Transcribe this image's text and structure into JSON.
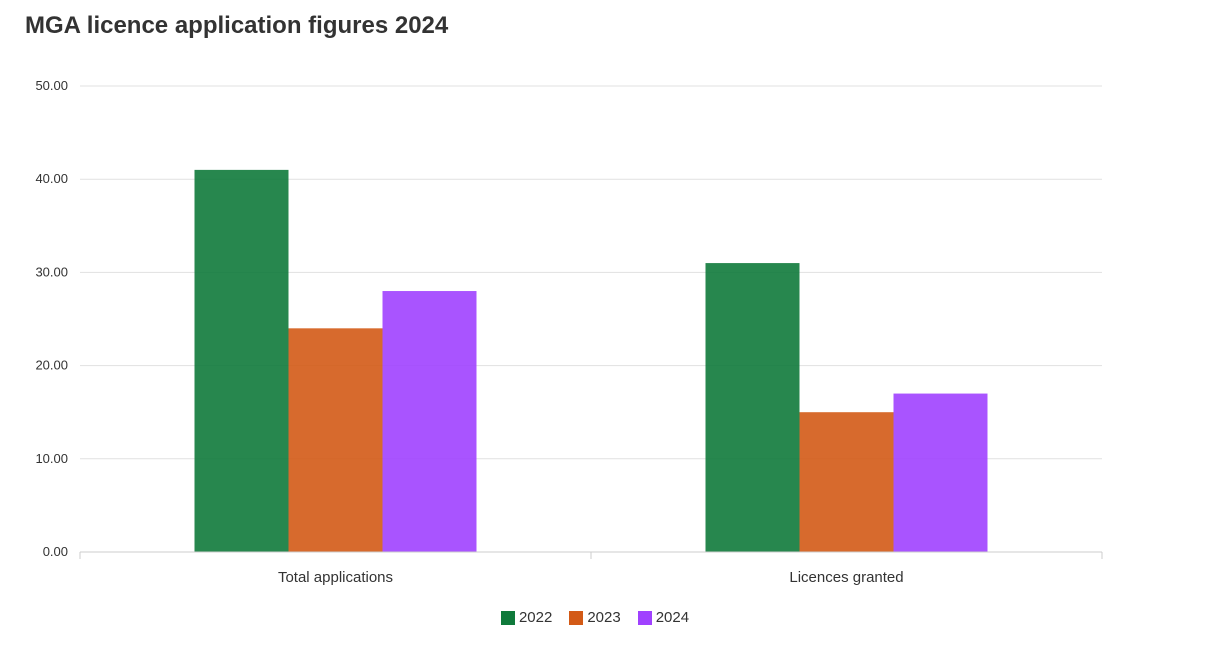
{
  "chart_data": {
    "type": "bar",
    "title": "MGA licence application figures 2024",
    "xlabel": "",
    "ylabel": "",
    "categories": [
      "Total applications",
      "Licences granted"
    ],
    "series": [
      {
        "name": "2022",
        "color": "#0f7a3b",
        "values": [
          41,
          31
        ]
      },
      {
        "name": "2023",
        "color": "#d35a16",
        "values": [
          24,
          15
        ]
      },
      {
        "name": "2024",
        "color": "#a041ff",
        "values": [
          28,
          17
        ]
      }
    ],
    "ylim": [
      0,
      50
    ],
    "yticks": [
      "0.00",
      "10.00",
      "20.00",
      "30.00",
      "40.00",
      "50.00"
    ],
    "grid": true,
    "legend": "bottom-center"
  }
}
